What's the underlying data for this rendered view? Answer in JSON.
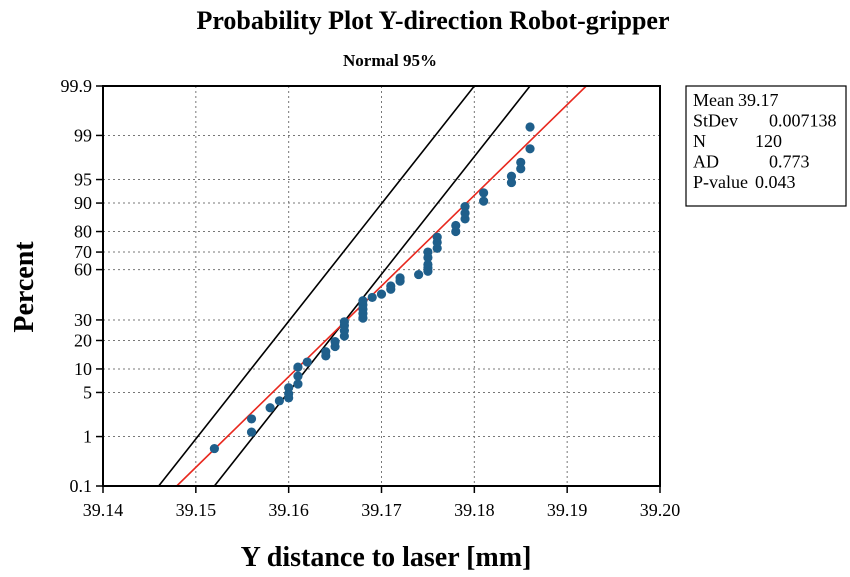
{
  "chart_data": {
    "type": "scatter",
    "title": "Probability Plot Y-direction Robot-gripper",
    "subtitle": "Normal 95%",
    "xlabel": "Y distance to laser [mm]",
    "ylabel": "Percent",
    "xlim": [
      39.14,
      39.2
    ],
    "x_ticks": [
      "39.14",
      "39.15",
      "39.16",
      "39.17",
      "39.18",
      "39.19",
      "39.20"
    ],
    "x_tick_values": [
      39.14,
      39.15,
      39.16,
      39.17,
      39.18,
      39.19,
      39.2
    ],
    "y_scale": "normal-probability",
    "ylim": [
      0.1,
      99.9
    ],
    "y_ticks": [
      "0.1",
      "1",
      "5",
      "10",
      "20",
      "30",
      "60",
      "70",
      "80",
      "90",
      "95",
      "99",
      "99.9"
    ],
    "y_tick_values": [
      0.1,
      1,
      5,
      10,
      20,
      30,
      60,
      70,
      80,
      90,
      95,
      99,
      99.9
    ],
    "grid": true,
    "colors": {
      "points": "#1f5f8b",
      "fit_line": "#e8281e",
      "confidence_bands": "#000000"
    },
    "stats": [
      {
        "label": "Mean",
        "value": "39.17"
      },
      {
        "label": "StDev",
        "value": "0.007138"
      },
      {
        "label": "N",
        "value": "120"
      },
      {
        "label": "AD",
        "value": "0.773"
      },
      {
        "label": "P-value",
        "value": "0.043"
      }
    ],
    "fit_line": {
      "mean": 39.17,
      "stdev": 0.007138
    },
    "confidence_bands": {
      "lower": [
        [
          39.152,
          0.1
        ],
        [
          39.186,
          99.9
        ]
      ],
      "upper": [
        [
          39.146,
          0.1
        ],
        [
          39.18,
          99.9
        ]
      ]
    },
    "points": [
      [
        39.152,
        0.6
      ],
      [
        39.156,
        1.2
      ],
      [
        39.156,
        2.0
      ],
      [
        39.158,
        3.0
      ],
      [
        39.159,
        3.8
      ],
      [
        39.16,
        4.2
      ],
      [
        39.16,
        4.8
      ],
      [
        39.16,
        5.8
      ],
      [
        39.161,
        6.5
      ],
      [
        39.161,
        8.2
      ],
      [
        39.161,
        10.5
      ],
      [
        39.162,
        12.0
      ],
      [
        39.164,
        14.0
      ],
      [
        39.164,
        15.5
      ],
      [
        39.165,
        17.5
      ],
      [
        39.165,
        19.5
      ],
      [
        39.166,
        22.0
      ],
      [
        39.166,
        24.5
      ],
      [
        39.166,
        27.0
      ],
      [
        39.166,
        29.0
      ],
      [
        39.168,
        31.0
      ],
      [
        39.168,
        33.5
      ],
      [
        39.168,
        36.0
      ],
      [
        39.168,
        38.5
      ],
      [
        39.168,
        41.0
      ],
      [
        39.169,
        43.0
      ],
      [
        39.17,
        45.0
      ],
      [
        39.171,
        48.0
      ],
      [
        39.171,
        50.0
      ],
      [
        39.172,
        53.0
      ],
      [
        39.172,
        55.0
      ],
      [
        39.174,
        57.0
      ],
      [
        39.175,
        59.0
      ],
      [
        39.175,
        61.0
      ],
      [
        39.175,
        63.0
      ],
      [
        39.175,
        67.0
      ],
      [
        39.175,
        70.0
      ],
      [
        39.176,
        72.0
      ],
      [
        39.176,
        75.0
      ],
      [
        39.176,
        77.5
      ],
      [
        39.178,
        80.0
      ],
      [
        39.178,
        82.5
      ],
      [
        39.179,
        85.0
      ],
      [
        39.179,
        87.0
      ],
      [
        39.179,
        89.0
      ],
      [
        39.181,
        90.5
      ],
      [
        39.181,
        92.5
      ],
      [
        39.184,
        94.5
      ],
      [
        39.184,
        95.5
      ],
      [
        39.185,
        96.5
      ],
      [
        39.185,
        97.2
      ],
      [
        39.186,
        98.3
      ],
      [
        39.186,
        99.3
      ]
    ]
  }
}
